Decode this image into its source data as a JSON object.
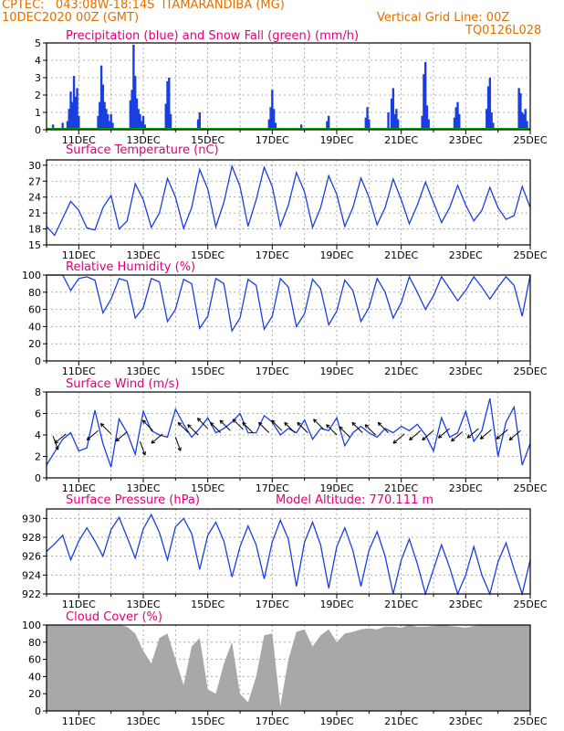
{
  "header": {
    "left_line1": "CPTEC:   043:08W-18:14S  ITAMARANDIBA (MG)",
    "left_line2": "10DEC2020 00Z (GMT)",
    "right_line1": "Vertical Grid Line: 00Z",
    "right_line2": "TQ0126L028"
  },
  "colors": {
    "header": "#e07000",
    "title": "#e0007a",
    "series": "#1a3fe0",
    "snow": "#00a000",
    "cloud": "#a8a8a8",
    "grid": "#9a9a9a"
  },
  "x_dates": [
    "11DEC",
    "13DEC",
    "15DEC",
    "17DEC",
    "19DEC",
    "21DEC",
    "23DEC",
    "25DEC"
  ],
  "chart_data": [
    {
      "id": "precip",
      "type": "bar",
      "title": "Precipitation (blue) and Snow Fall (green) (mm/h)",
      "ylim": [
        0,
        5
      ],
      "yticks": [
        0,
        1,
        2,
        3,
        4,
        5
      ],
      "x_range_days": [
        10,
        25
      ],
      "series": [
        {
          "name": "Precipitation",
          "x_days": [
            10.2,
            10.5,
            10.65,
            10.7,
            10.75,
            10.8,
            10.85,
            10.9,
            10.95,
            11.0,
            11.6,
            11.65,
            11.7,
            11.75,
            11.8,
            11.85,
            11.9,
            11.95,
            12.0,
            12.05,
            12.6,
            12.65,
            12.7,
            12.75,
            12.8,
            12.85,
            12.9,
            12.95,
            13.0,
            13.05,
            13.7,
            13.75,
            13.8,
            13.85,
            14.7,
            14.75,
            16.9,
            16.95,
            17.0,
            17.05,
            17.1,
            17.9,
            18.7,
            18.75,
            19.9,
            19.95,
            20.0,
            20.6,
            20.7,
            20.75,
            20.8,
            20.85,
            20.9,
            21.65,
            21.7,
            21.75,
            21.8,
            21.85,
            22.65,
            22.7,
            22.75,
            22.8,
            23.65,
            23.7,
            23.75,
            23.8,
            23.85,
            24.65,
            24.7,
            24.75,
            24.8,
            24.85,
            24.9
          ],
          "values": [
            0.3,
            0.4,
            0.5,
            1.2,
            2.2,
            1.6,
            3.1,
            1.9,
            2.4,
            0.8,
            0.8,
            1.6,
            3.7,
            2.6,
            1.6,
            1.2,
            0.9,
            0.5,
            0.9,
            0.4,
            1.7,
            2.3,
            4.9,
            3.1,
            1.8,
            1.2,
            0.9,
            0.5,
            0.8,
            0.3,
            1.5,
            2.8,
            3.0,
            0.9,
            0.6,
            1.0,
            0.6,
            1.3,
            2.3,
            1.2,
            0.4,
            0.3,
            0.5,
            0.8,
            0.7,
            1.3,
            0.6,
            1.0,
            1.8,
            2.4,
            0.9,
            1.2,
            0.6,
            0.8,
            3.2,
            3.9,
            1.4,
            0.6,
            0.7,
            1.3,
            1.6,
            0.9,
            1.2,
            2.5,
            3.0,
            1.0,
            0.4,
            2.4,
            2.1,
            1.0,
            0.9,
            1.2,
            0.5
          ]
        }
      ]
    },
    {
      "id": "temp",
      "type": "line",
      "title": "Surface Temperature (nC)",
      "ylim": [
        15,
        31
      ],
      "yticks": [
        15,
        18,
        21,
        24,
        27,
        30
      ],
      "x_range_days": [
        10,
        25
      ],
      "series": [
        {
          "name": "Temperature",
          "x_days": [
            10.0,
            10.25,
            10.5,
            10.75,
            11.0,
            11.25,
            11.5,
            11.75,
            12.0,
            12.25,
            12.5,
            12.75,
            13.0,
            13.25,
            13.5,
            13.75,
            14.0,
            14.25,
            14.5,
            14.75,
            15.0,
            15.25,
            15.5,
            15.75,
            16.0,
            16.25,
            16.5,
            16.75,
            17.0,
            17.25,
            17.5,
            17.75,
            18.0,
            18.25,
            18.5,
            18.75,
            19.0,
            19.25,
            19.5,
            19.75,
            20.0,
            20.25,
            20.5,
            20.75,
            21.0,
            21.25,
            21.5,
            21.75,
            22.0,
            22.25,
            22.5,
            22.75,
            23.0,
            23.25,
            23.5,
            23.75,
            24.0,
            24.25,
            24.5,
            24.75,
            25.0
          ],
          "values": [
            18.5,
            16.8,
            20.0,
            23.2,
            21.5,
            18.2,
            17.8,
            22.0,
            24.3,
            18.0,
            19.5,
            26.5,
            23.5,
            18.3,
            21.0,
            27.5,
            24.0,
            18.1,
            22.0,
            29.2,
            25.5,
            18.4,
            23.0,
            29.8,
            26.0,
            18.5,
            23.5,
            29.6,
            26.0,
            18.5,
            22.5,
            28.6,
            25.0,
            18.3,
            22.0,
            28.0,
            24.5,
            18.5,
            22.0,
            27.6,
            24.0,
            18.8,
            22.0,
            27.4,
            23.5,
            19.0,
            22.5,
            26.8,
            23.0,
            19.2,
            22.0,
            26.2,
            22.5,
            19.5,
            21.5,
            25.8,
            22.0,
            19.8,
            20.5,
            26.0,
            22.0
          ]
        }
      ]
    },
    {
      "id": "rh",
      "type": "line",
      "title": "Relative Humidity (%)",
      "ylim": [
        0,
        100
      ],
      "yticks": [
        0,
        20,
        40,
        60,
        80,
        100
      ],
      "x_range_days": [
        10,
        25
      ],
      "series": [
        {
          "name": "Relative Humidity",
          "x_days": [
            10.0,
            10.25,
            10.5,
            10.75,
            11.0,
            11.25,
            11.5,
            11.75,
            12.0,
            12.25,
            12.5,
            12.75,
            13.0,
            13.25,
            13.5,
            13.75,
            14.0,
            14.25,
            14.5,
            14.75,
            15.0,
            15.25,
            15.5,
            15.75,
            16.0,
            16.25,
            16.5,
            16.75,
            17.0,
            17.25,
            17.5,
            17.75,
            18.0,
            18.25,
            18.5,
            18.75,
            19.0,
            19.25,
            19.5,
            19.75,
            20.0,
            20.25,
            20.5,
            20.75,
            21.0,
            21.25,
            21.5,
            21.75,
            22.0,
            22.25,
            22.5,
            22.75,
            23.0,
            23.25,
            23.5,
            23.75,
            24.0,
            24.25,
            24.5,
            24.75,
            25.0
          ],
          "values": [
            100,
            100,
            100,
            82,
            96,
            98,
            94,
            56,
            72,
            96,
            93,
            50,
            62,
            96,
            92,
            46,
            60,
            95,
            90,
            38,
            52,
            96,
            90,
            35,
            50,
            95,
            88,
            37,
            52,
            96,
            86,
            40,
            55,
            95,
            84,
            42,
            58,
            94,
            82,
            46,
            62,
            96,
            80,
            50,
            68,
            98,
            80,
            60,
            76,
            98,
            84,
            70,
            82,
            98,
            86,
            72,
            86,
            98,
            88,
            52,
            100
          ]
        }
      ]
    },
    {
      "id": "wind",
      "type": "line",
      "title": "Surface Wind (m/s)",
      "ylim": [
        0,
        8
      ],
      "yticks": [
        0,
        2,
        4,
        6,
        8
      ],
      "x_range_days": [
        10,
        25
      ],
      "series": [
        {
          "name": "Wind speed",
          "x_days": [
            10.0,
            10.25,
            10.5,
            10.75,
            11.0,
            11.25,
            11.5,
            11.75,
            12.0,
            12.25,
            12.5,
            12.75,
            13.0,
            13.25,
            13.5,
            13.75,
            14.0,
            14.25,
            14.5,
            14.75,
            15.0,
            15.25,
            15.5,
            15.75,
            16.0,
            16.25,
            16.5,
            16.75,
            17.0,
            17.25,
            17.5,
            17.75,
            18.0,
            18.25,
            18.5,
            18.75,
            19.0,
            19.25,
            19.5,
            19.75,
            20.0,
            20.25,
            20.5,
            20.75,
            21.0,
            21.25,
            21.5,
            21.75,
            22.0,
            22.25,
            22.5,
            22.75,
            23.0,
            23.25,
            23.5,
            23.75,
            24.0,
            24.25,
            24.5,
            24.75,
            25.0
          ],
          "values": [
            1.2,
            2.4,
            3.6,
            4.2,
            2.5,
            2.8,
            6.3,
            3.2,
            1.0,
            5.5,
            4.2,
            2.2,
            6.2,
            4.4,
            4.0,
            3.8,
            6.4,
            5.0,
            3.8,
            4.6,
            5.6,
            4.2,
            4.6,
            5.2,
            6.0,
            4.2,
            4.2,
            5.8,
            5.2,
            4.0,
            4.6,
            4.2,
            5.4,
            3.6,
            4.6,
            4.4,
            5.6,
            3.0,
            4.2,
            4.8,
            4.2,
            3.8,
            4.6,
            4.2,
            4.8,
            4.4,
            5.0,
            4.0,
            2.5,
            5.6,
            3.8,
            4.2,
            6.2,
            3.4,
            4.4,
            7.4,
            2.0,
            5.2,
            6.6,
            1.2,
            3.2
          ]
        },
        {
          "name": "Wind direction",
          "points": [
            [
              10.2,
              3.9,
              70
            ],
            [
              10.6,
              4.1,
              140
            ],
            [
              11.6,
              4.4,
              140
            ],
            [
              12.0,
              4.1,
              225
            ],
            [
              12.5,
              4.3,
              140
            ],
            [
              12.9,
              3.4,
              70
            ],
            [
              13.3,
              4.4,
              225
            ],
            [
              13.6,
              4.1,
              140
            ],
            [
              14.0,
              3.8,
              70
            ],
            [
              14.4,
              4.2,
              225
            ],
            [
              14.7,
              4.0,
              225
            ],
            [
              15.0,
              4.6,
              225
            ],
            [
              15.4,
              4.2,
              225
            ],
            [
              15.7,
              4.4,
              225
            ],
            [
              16.1,
              4.5,
              225
            ],
            [
              16.4,
              4.2,
              225
            ],
            [
              16.9,
              4.2,
              225
            ],
            [
              17.3,
              4.4,
              225
            ],
            [
              17.7,
              4.2,
              225
            ],
            [
              18.1,
              4.2,
              225
            ],
            [
              18.6,
              4.5,
              225
            ],
            [
              19.0,
              4.0,
              225
            ],
            [
              19.4,
              3.8,
              225
            ],
            [
              19.8,
              4.2,
              225
            ],
            [
              20.2,
              4.0,
              225
            ],
            [
              20.6,
              4.2,
              225
            ],
            [
              21.1,
              4.1,
              140
            ],
            [
              21.6,
              4.4,
              140
            ],
            [
              22.0,
              4.4,
              140
            ],
            [
              22.5,
              4.6,
              140
            ],
            [
              22.9,
              4.3,
              140
            ],
            [
              23.4,
              4.6,
              140
            ],
            [
              23.8,
              4.5,
              140
            ],
            [
              24.3,
              4.5,
              140
            ],
            [
              24.7,
              4.4,
              140
            ]
          ]
        }
      ]
    },
    {
      "id": "pressure",
      "type": "line",
      "title": "Surface Pressure (hPa)",
      "annotation": "Model Altitude: 770.111 m",
      "ylim": [
        922,
        931
      ],
      "yticks": [
        922,
        924,
        926,
        928,
        930
      ],
      "x_range_days": [
        10,
        25
      ],
      "series": [
        {
          "name": "Pressure",
          "x_days": [
            10.0,
            10.25,
            10.5,
            10.75,
            11.0,
            11.25,
            11.5,
            11.75,
            12.0,
            12.25,
            12.5,
            12.75,
            13.0,
            13.25,
            13.5,
            13.75,
            14.0,
            14.25,
            14.5,
            14.75,
            15.0,
            15.25,
            15.5,
            15.75,
            16.0,
            16.25,
            16.5,
            16.75,
            17.0,
            17.25,
            17.5,
            17.75,
            18.0,
            18.25,
            18.5,
            18.75,
            19.0,
            19.25,
            19.5,
            19.75,
            20.0,
            20.25,
            20.5,
            20.75,
            21.0,
            21.25,
            21.5,
            21.75,
            22.0,
            22.25,
            22.5,
            22.75,
            23.0,
            23.25,
            23.5,
            23.75,
            24.0,
            24.25,
            24.5,
            24.75,
            25.0
          ],
          "values": [
            926.5,
            927.3,
            928.2,
            925.6,
            927.6,
            929.0,
            927.6,
            926.0,
            928.8,
            930.1,
            928.0,
            925.8,
            928.9,
            930.4,
            928.5,
            925.6,
            929.1,
            930.0,
            928.4,
            924.6,
            928.2,
            929.6,
            927.6,
            923.8,
            927.0,
            929.2,
            927.2,
            923.6,
            927.5,
            929.8,
            927.8,
            922.8,
            927.5,
            929.6,
            927.2,
            922.6,
            927.0,
            929.0,
            926.6,
            922.8,
            926.6,
            928.6,
            926.0,
            922.0,
            925.6,
            927.8,
            925.2,
            922.0,
            924.6,
            927.2,
            924.8,
            922.0,
            924.0,
            927.0,
            924.0,
            922.0,
            925.4,
            927.4,
            924.6,
            922.0,
            925.6
          ]
        }
      ]
    },
    {
      "id": "cloud",
      "type": "area",
      "title": "Cloud Cover (%)",
      "ylim": [
        0,
        100
      ],
      "yticks": [
        0,
        20,
        40,
        60,
        80,
        100
      ],
      "x_range_days": [
        10,
        25
      ],
      "series": [
        {
          "name": "Cloud Cover",
          "x_days": [
            10.0,
            10.25,
            10.5,
            10.75,
            11.0,
            11.25,
            11.5,
            11.75,
            12.0,
            12.25,
            12.5,
            12.75,
            13.0,
            13.25,
            13.5,
            13.75,
            14.0,
            14.25,
            14.5,
            14.75,
            15.0,
            15.25,
            15.5,
            15.75,
            16.0,
            16.25,
            16.5,
            16.75,
            17.0,
            17.25,
            17.5,
            17.75,
            18.0,
            18.25,
            18.5,
            18.75,
            19.0,
            19.25,
            19.5,
            19.75,
            20.0,
            20.25,
            20.5,
            20.75,
            21.0,
            21.25,
            21.5,
            21.75,
            22.0,
            22.25,
            22.5,
            22.75,
            23.0,
            23.25,
            23.5,
            23.75,
            24.0,
            24.25,
            24.5,
            24.75,
            25.0
          ],
          "values": [
            100,
            100,
            100,
            100,
            100,
            100,
            100,
            100,
            100,
            100,
            98,
            90,
            70,
            55,
            85,
            90,
            60,
            30,
            75,
            85,
            25,
            20,
            55,
            80,
            20,
            10,
            40,
            88,
            90,
            5,
            60,
            92,
            95,
            75,
            88,
            95,
            80,
            90,
            92,
            95,
            96,
            95,
            98,
            98,
            97,
            100,
            98,
            98,
            99,
            100,
            99,
            98,
            97,
            99,
            100,
            100,
            100,
            100,
            100,
            100,
            100
          ]
        }
      ]
    }
  ]
}
